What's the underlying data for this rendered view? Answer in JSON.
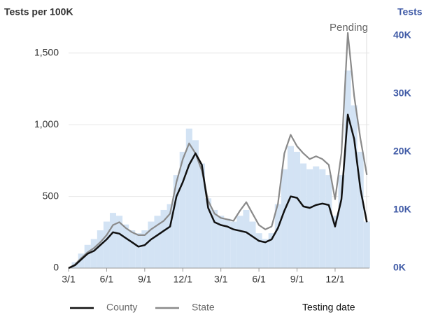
{
  "chart_data": {
    "type": "line",
    "ylabel": "Tests per 100K",
    "y2label": "Tests",
    "xlabel": "Testing date",
    "annotations": [
      {
        "text": "Pending"
      }
    ],
    "categories": [
      "3/1",
      null,
      null,
      null,
      null,
      null,
      "6/1",
      null,
      null,
      null,
      null,
      null,
      "9/1",
      null,
      null,
      null,
      null,
      null,
      "12/1",
      null,
      null,
      null,
      null,
      null,
      "3/1",
      null,
      null,
      null,
      null,
      null,
      "6/1",
      null,
      null,
      null,
      null,
      null,
      "9/1",
      null,
      null,
      null,
      null,
      null,
      "12/1",
      null,
      null,
      null,
      null,
      null
    ],
    "series": [
      {
        "name": "County",
        "color": "#111111",
        "values": [
          0,
          20,
          60,
          100,
          120,
          160,
          200,
          250,
          240,
          210,
          180,
          150,
          160,
          200,
          230,
          260,
          290,
          500,
          600,
          720,
          800,
          720,
          420,
          320,
          300,
          290,
          270,
          260,
          250,
          220,
          190,
          180,
          200,
          280,
          400,
          500,
          490,
          430,
          420,
          440,
          450,
          440,
          290,
          480,
          1070,
          900,
          550,
          320
        ]
      },
      {
        "name": "State",
        "color": "#8a8a8a",
        "values": [
          0,
          25,
          70,
          110,
          140,
          180,
          230,
          300,
          320,
          280,
          250,
          230,
          230,
          270,
          300,
          330,
          380,
          600,
          760,
          870,
          800,
          680,
          470,
          380,
          350,
          340,
          330,
          400,
          460,
          380,
          300,
          270,
          290,
          450,
          800,
          930,
          850,
          800,
          760,
          780,
          760,
          720,
          480,
          800,
          1640,
          1200,
          900,
          650
        ]
      },
      {
        "type": "bar",
        "axis": "y2",
        "color": "#d3e3f4",
        "values": [
          0,
          1000,
          2500,
          4000,
          5000,
          6500,
          8000,
          9500,
          9000,
          7500,
          6500,
          6000,
          6500,
          8000,
          9000,
          10000,
          11000,
          16000,
          20000,
          24000,
          22000,
          18000,
          12000,
          10000,
          9000,
          8500,
          8000,
          9000,
          10000,
          8000,
          6000,
          5000,
          6000,
          11000,
          17000,
          21000,
          20000,
          18000,
          17000,
          17500,
          17000,
          16000,
          9000,
          16000,
          34000,
          28000,
          20000,
          8000
        ]
      }
    ],
    "ylim": [
      0,
      1650
    ],
    "yticks": [
      0,
      500,
      {
        "value": 1000,
        "label": "1,000"
      },
      {
        "value": 1500,
        "label": "1,500"
      }
    ],
    "y2lim": [
      0,
      40700
    ],
    "y2ticks": [
      {
        "value": 0,
        "label": "0K"
      },
      {
        "value": 10000,
        "label": "10K"
      },
      {
        "value": 20000,
        "label": "20K"
      },
      {
        "value": 30000,
        "label": "30K"
      },
      {
        "value": 40000,
        "label": "40K"
      }
    ],
    "grid": true
  }
}
